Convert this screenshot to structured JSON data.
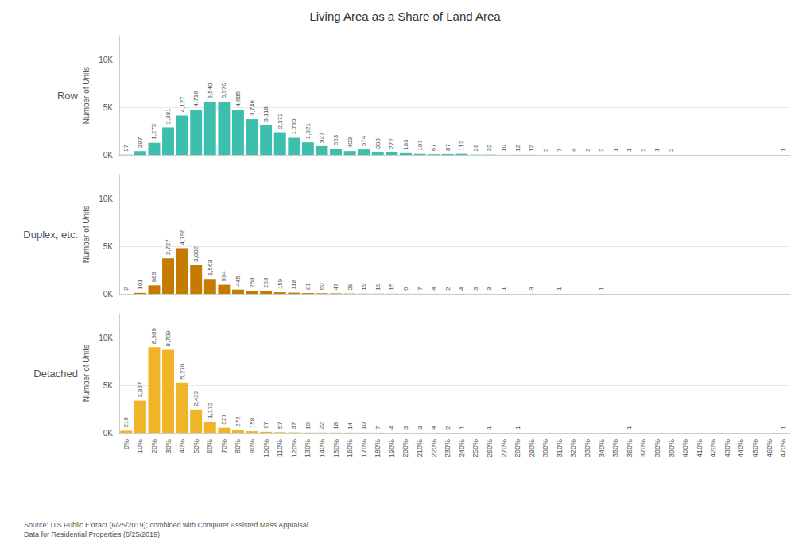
{
  "chart_data": [
    {
      "type": "bar",
      "title": "Living Area as a Share of Land Area",
      "y_label": "Number of Units",
      "categories": [
        "0%",
        "10%",
        "20%",
        "30%",
        "40%",
        "50%",
        "60%",
        "70%",
        "80%",
        "90%",
        "100%",
        "110%",
        "120%",
        "130%",
        "140%",
        "150%",
        "160%",
        "170%",
        "180%",
        "190%",
        "200%",
        "210%",
        "220%",
        "230%",
        "240%",
        "250%",
        "260%",
        "270%",
        "280%",
        "290%",
        "300%",
        "310%",
        "320%",
        "330%",
        "340%",
        "350%",
        "360%",
        "370%",
        "380%",
        "390%",
        "400%",
        "410%",
        "420%",
        "430%",
        "440%",
        "450%",
        "460%",
        "470%"
      ],
      "series": [
        {
          "name": "Row",
          "color": "#3DBFAD",
          "values": [
            27,
            397,
            1275,
            2881,
            4127,
            4716,
            5540,
            5570,
            4685,
            3746,
            3118,
            2372,
            1790,
            1321,
            927,
            653,
            403,
            574,
            303,
            272,
            183,
            107,
            67,
            87,
            112,
            29,
            32,
            10,
            12,
            12,
            5,
            7,
            4,
            3,
            2,
            1,
            1,
            2,
            1,
            2,
            0,
            0,
            0,
            0,
            0,
            0,
            0,
            1
          ],
          "value_labels": [
            "27",
            "397",
            "1,275",
            "2,881",
            "4,127",
            "4,716",
            "5,540",
            "5,570",
            "4,685",
            "3,746",
            "3,118",
            "2,372",
            "1,790",
            "1,321",
            "927",
            "653",
            "403",
            "574",
            "303",
            "272",
            "183",
            "107",
            "67",
            "87",
            "112",
            "29",
            "32",
            "10",
            "12",
            "12",
            "5",
            "7",
            "4",
            "3",
            "2",
            "1",
            "1",
            "2",
            "1",
            "2",
            null,
            null,
            null,
            null,
            null,
            null,
            null,
            "1"
          ]
        }
      ],
      "ylim": [
        0,
        12500
      ],
      "yticks": [
        {
          "value": 0,
          "label": "0K"
        },
        {
          "value": 5000,
          "label": "5K"
        },
        {
          "value": 10000,
          "label": "10K"
        }
      ],
      "grid": true,
      "data_labels": true,
      "tick_labels": "y"
    },
    {
      "type": "bar",
      "y_label": "Number of Units",
      "categories": [
        "0%",
        "10%",
        "20%",
        "30%",
        "40%",
        "50%",
        "60%",
        "70%",
        "80%",
        "90%",
        "100%",
        "110%",
        "120%",
        "130%",
        "140%",
        "150%",
        "160%",
        "170%",
        "180%",
        "190%",
        "200%",
        "210%",
        "220%",
        "230%",
        "240%",
        "250%",
        "260%",
        "270%",
        "280%",
        "290%",
        "300%",
        "310%",
        "320%",
        "330%",
        "340%",
        "350%",
        "360%",
        "370%",
        "380%",
        "390%",
        "400%",
        "410%",
        "420%",
        "430%",
        "440%",
        "450%",
        "460%",
        "470%"
      ],
      "series": [
        {
          "name": "Duplex, etc.",
          "color": "#C47B00",
          "values": [
            2,
            101,
            889,
            3727,
            4796,
            3002,
            1563,
            954,
            445,
            268,
            253,
            159,
            118,
            81,
            60,
            47,
            28,
            19,
            19,
            15,
            6,
            7,
            4,
            2,
            4,
            3,
            3,
            1,
            0,
            3,
            0,
            1,
            0,
            0,
            1,
            0,
            0,
            0,
            0,
            0,
            0,
            0,
            0,
            0,
            0,
            0,
            0,
            0
          ],
          "value_labels": [
            "2",
            "101",
            "889",
            "3,727",
            "4,796",
            "3,002",
            "1,563",
            "954",
            "445",
            "268",
            "253",
            "159",
            "118",
            "81",
            "60",
            "47",
            "28",
            "19",
            "19",
            "15",
            "6",
            "7",
            "4",
            "2",
            "4",
            "3",
            "3",
            "1",
            null,
            "3",
            null,
            "1",
            null,
            null,
            "1",
            null,
            null,
            null,
            null,
            null,
            null,
            null,
            null,
            null,
            null,
            null,
            null,
            null
          ]
        }
      ],
      "ylim": [
        0,
        12500
      ],
      "yticks": [
        {
          "value": 0,
          "label": "0K"
        },
        {
          "value": 5000,
          "label": "5K"
        },
        {
          "value": 10000,
          "label": "10K"
        }
      ],
      "grid": true,
      "data_labels": true,
      "tick_labels": "y"
    },
    {
      "type": "bar",
      "y_label": "Number of Units",
      "categories": [
        "0%",
        "10%",
        "20%",
        "30%",
        "40%",
        "50%",
        "60%",
        "70%",
        "80%",
        "90%",
        "100%",
        "110%",
        "120%",
        "130%",
        "140%",
        "150%",
        "160%",
        "170%",
        "180%",
        "190%",
        "200%",
        "210%",
        "220%",
        "230%",
        "240%",
        "250%",
        "260%",
        "270%",
        "280%",
        "290%",
        "300%",
        "310%",
        "320%",
        "330%",
        "340%",
        "350%",
        "360%",
        "370%",
        "380%",
        "390%",
        "400%",
        "410%",
        "420%",
        "430%",
        "440%",
        "450%",
        "460%",
        "470%"
      ],
      "series": [
        {
          "name": "Detached",
          "color": "#F0B429",
          "values": [
            216,
            3367,
            8989,
            8709,
            5270,
            2432,
            1172,
            527,
            272,
            158,
            97,
            57,
            37,
            19,
            22,
            18,
            14,
            10,
            7,
            4,
            3,
            3,
            4,
            2,
            1,
            0,
            1,
            0,
            1,
            0,
            0,
            0,
            0,
            0,
            0,
            0,
            1,
            0,
            0,
            0,
            0,
            0,
            0,
            0,
            0,
            0,
            0,
            1
          ],
          "value_labels": [
            "216",
            "3,367",
            "8,989",
            "8,709",
            "5,270",
            "2,432",
            "1,172",
            "527",
            "272",
            "158",
            "97",
            "57",
            "37",
            "19",
            "22",
            "18",
            "14",
            "10",
            "7",
            "4",
            "3",
            "3",
            "4",
            "2",
            "1",
            null,
            "1",
            null,
            "1",
            null,
            null,
            null,
            null,
            null,
            null,
            null,
            "1",
            null,
            null,
            null,
            null,
            null,
            null,
            null,
            null,
            null,
            null,
            "1"
          ]
        }
      ],
      "ylim": [
        0,
        12500
      ],
      "yticks": [
        {
          "value": 0,
          "label": "0K"
        },
        {
          "value": 5000,
          "label": "5K"
        },
        {
          "value": 10000,
          "label": "10K"
        }
      ],
      "grid": true,
      "data_labels": true,
      "annotations": [
        "Source: ITS Public Extract (6/25/2019); combined with Computer Assisted Mass Appraisal\nData for Residential Properties (6/25/2019)"
      ]
    }
  ]
}
